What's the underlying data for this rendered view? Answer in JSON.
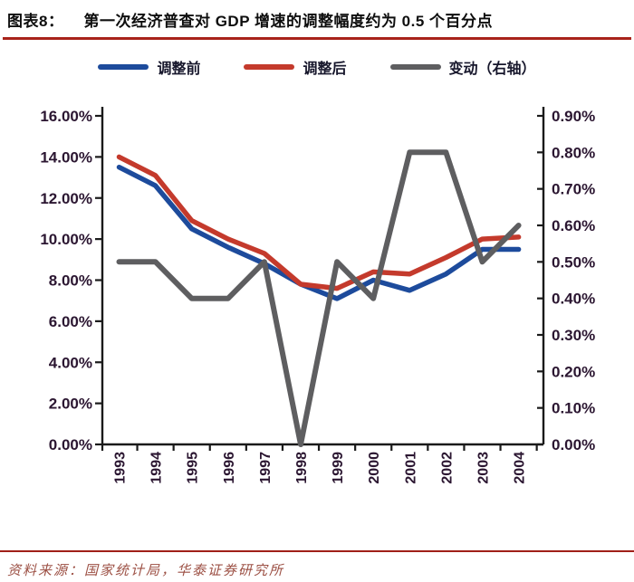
{
  "figure": {
    "label": "图表8：",
    "title": "第一次经济普查对 GDP 增速的调整幅度约为 0.5 个百分点"
  },
  "legend": [
    {
      "id": "before",
      "label": "调整前",
      "color": "#1d4b9c"
    },
    {
      "id": "after",
      "label": "调整后",
      "color": "#c43a2c"
    },
    {
      "id": "change",
      "label": "变动（右轴）",
      "color": "#5e5e60"
    }
  ],
  "chart_data": {
    "type": "line",
    "categories": [
      "1993",
      "1994",
      "1995",
      "1996",
      "1997",
      "1998",
      "1999",
      "2000",
      "2001",
      "2002",
      "2003",
      "2004"
    ],
    "series": [
      {
        "id": "before",
        "name": "调整前",
        "axis": "left",
        "color": "#1d4b9c",
        "values": [
          13.5,
          12.6,
          10.5,
          9.6,
          8.8,
          7.8,
          7.1,
          8.0,
          7.5,
          8.3,
          9.5,
          9.5
        ]
      },
      {
        "id": "after",
        "name": "调整后",
        "axis": "left",
        "color": "#c43a2c",
        "values": [
          14.0,
          13.1,
          10.9,
          10.0,
          9.3,
          7.8,
          7.6,
          8.4,
          8.3,
          9.1,
          10.0,
          10.1
        ]
      },
      {
        "id": "change",
        "name": "变动（右轴）",
        "axis": "right",
        "color": "#5e5e60",
        "values": [
          0.5,
          0.5,
          0.4,
          0.4,
          0.5,
          0.0,
          0.5,
          0.4,
          0.8,
          0.8,
          0.5,
          0.6
        ]
      }
    ],
    "left_axis": {
      "min": 0,
      "max": 16,
      "ticks": [
        "16.00%",
        "14.00%",
        "12.00%",
        "10.00%",
        "8.00%",
        "6.00%",
        "4.00%",
        "2.00%",
        "0.00%"
      ]
    },
    "right_axis": {
      "min": 0,
      "max": 0.9,
      "ticks": [
        "0.90%",
        "0.80%",
        "0.70%",
        "0.60%",
        "0.50%",
        "0.40%",
        "0.30%",
        "0.20%",
        "0.10%",
        "0.00%"
      ]
    },
    "grid": false,
    "legend_position": "top"
  },
  "source": {
    "text": "资料来源：国家统计局，华泰证券研究所"
  },
  "colors": {
    "accent_rule": "#a8231a",
    "axis": "#1a1a1a",
    "tick_label": "#2b1631",
    "source_text": "#9c5044"
  }
}
